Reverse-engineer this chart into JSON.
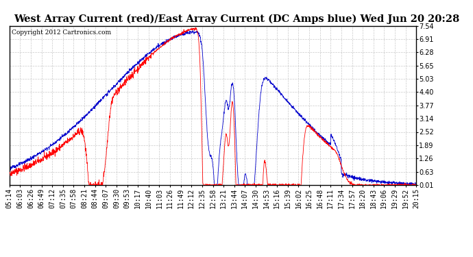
{
  "title": "West Array Current (red)/East Array Current (DC Amps blue) Wed Jun 20 20:28",
  "copyright": "Copyright 2012 Cartronics.com",
  "ylim": [
    0.01,
    7.54
  ],
  "yticks": [
    0.01,
    0.63,
    1.26,
    1.89,
    2.52,
    3.14,
    3.77,
    4.4,
    5.03,
    5.65,
    6.28,
    6.91,
    7.54
  ],
  "xtick_labels": [
    "05:14",
    "06:03",
    "06:26",
    "06:49",
    "07:12",
    "07:35",
    "07:58",
    "08:21",
    "08:44",
    "09:07",
    "09:30",
    "09:53",
    "10:17",
    "10:40",
    "11:03",
    "11:26",
    "11:49",
    "12:12",
    "12:35",
    "12:58",
    "13:21",
    "13:44",
    "14:07",
    "14:30",
    "14:53",
    "15:16",
    "15:39",
    "16:02",
    "16:25",
    "16:48",
    "17:11",
    "17:34",
    "17:57",
    "18:20",
    "18:43",
    "19:06",
    "19:29",
    "19:52",
    "20:15"
  ],
  "background_color": "#ffffff",
  "grid_color": "#bbbbbb",
  "red_line_color": "#ff0000",
  "blue_line_color": "#0000cc",
  "title_fontsize": 10.5,
  "tick_fontsize": 7,
  "copyright_fontsize": 6.5
}
